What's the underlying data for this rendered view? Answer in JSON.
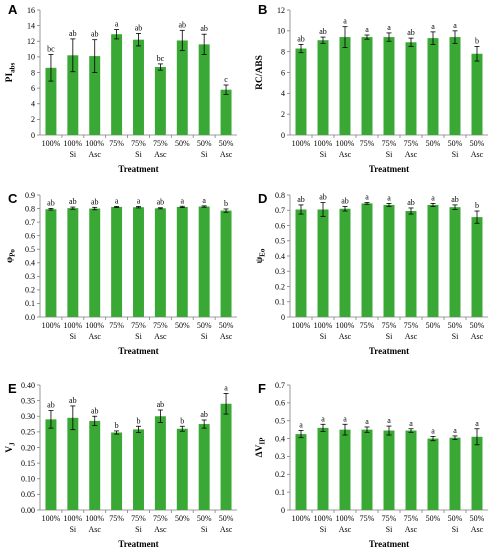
{
  "colors": {
    "bar": "#3aa835",
    "axis": "#7f7f7f",
    "error": "#000000"
  },
  "chart_data": [
    {
      "type": "bar",
      "panel": "A",
      "ylabel_main": "PI",
      "ylabel_sub": "abs",
      "xlabel": "Treatment",
      "ylim": [
        0,
        16
      ],
      "yticks": [
        "0",
        "2",
        "4",
        "6",
        "8",
        "10",
        "12",
        "14",
        "16"
      ],
      "category_lines": [
        [
          "100%",
          ""
        ],
        [
          "100%",
          "Si"
        ],
        [
          "100%",
          "Asc"
        ],
        [
          "75%",
          ""
        ],
        [
          "75%",
          "Si"
        ],
        [
          "75%",
          "Asc"
        ],
        [
          "50%",
          ""
        ],
        [
          "50%",
          "Si"
        ],
        [
          "50%",
          "Asc"
        ]
      ],
      "values": [
        8.6,
        10.2,
        10.1,
        12.9,
        12.2,
        8.7,
        12.1,
        11.6,
        5.8
      ],
      "errors": [
        1.7,
        2.1,
        2.1,
        0.6,
        0.8,
        0.4,
        1.3,
        1.3,
        0.6
      ],
      "letters": [
        "bc",
        "ab",
        "ab",
        "a",
        "ab",
        "bc",
        "ab",
        "ab",
        "c"
      ]
    },
    {
      "type": "bar",
      "panel": "B",
      "ylabel_main": "RC/ABS",
      "ylabel_sub": "",
      "xlabel": "Treatment",
      "ylim": [
        0,
        12
      ],
      "yticks": [
        "0",
        "2",
        "4",
        "6",
        "8",
        "10",
        "12"
      ],
      "category_lines": [
        [
          "100%",
          ""
        ],
        [
          "100%",
          "Si"
        ],
        [
          "100%",
          "Asc"
        ],
        [
          "75%",
          ""
        ],
        [
          "75%",
          "Si"
        ],
        [
          "75%",
          "Asc"
        ],
        [
          "50%",
          ""
        ],
        [
          "50%",
          "Si"
        ],
        [
          "50%",
          "Asc"
        ]
      ],
      "values": [
        8.3,
        9.1,
        9.4,
        9.4,
        9.4,
        8.9,
        9.3,
        9.4,
        7.8
      ],
      "errors": [
        0.4,
        0.3,
        1.0,
        0.2,
        0.4,
        0.4,
        0.6,
        0.6,
        0.7
      ],
      "letters": [
        "ab",
        "ab",
        "a",
        "a",
        "a",
        "ab",
        "a",
        "a",
        "b"
      ]
    },
    {
      "type": "bar",
      "panel": "C",
      "ylabel_main": "φ",
      "ylabel_sub": "Po",
      "xlabel": "Treatment",
      "ylim": [
        0,
        0.9
      ],
      "yticks": [
        "0.0",
        "0.1",
        "0.2",
        "0.3",
        "0.4",
        "0.5",
        "0.6",
        "0.7",
        "0.8",
        "0.9"
      ],
      "category_lines": [
        [
          "100%",
          ""
        ],
        [
          "100%",
          "Si"
        ],
        [
          "100%",
          "Asc"
        ],
        [
          "75%",
          ""
        ],
        [
          "75%",
          "Si"
        ],
        [
          "75%",
          "Asc"
        ],
        [
          "50%",
          ""
        ],
        [
          "50%",
          "Si"
        ],
        [
          "50%",
          "Asc"
        ]
      ],
      "values": [
        0.795,
        0.803,
        0.8,
        0.812,
        0.81,
        0.802,
        0.812,
        0.815,
        0.785
      ],
      "errors": [
        0.006,
        0.008,
        0.009,
        0.004,
        0.005,
        0.004,
        0.005,
        0.005,
        0.012
      ],
      "letters": [
        "ab",
        "ab",
        "ab",
        "a",
        "a",
        "ab",
        "a",
        "a",
        "b"
      ]
    },
    {
      "type": "bar",
      "panel": "D",
      "ylabel_main": "ψ",
      "ylabel_sub": "Eo",
      "xlabel": "Treatment",
      "ylim": [
        0,
        0.8
      ],
      "yticks": [
        "0",
        "0.1",
        "0.2",
        "0.3",
        "0.4",
        "0.5",
        "0.6",
        "0.7",
        "0.8"
      ],
      "category_lines": [
        [
          "100%",
          ""
        ],
        [
          "100%",
          "Si"
        ],
        [
          "100%",
          "Asc"
        ],
        [
          "75%",
          ""
        ],
        [
          "75%",
          "Si"
        ],
        [
          "75%",
          "Asc"
        ],
        [
          "50%",
          ""
        ],
        [
          "50%",
          "Si"
        ],
        [
          "50%",
          "Asc"
        ]
      ],
      "values": [
        0.705,
        0.705,
        0.71,
        0.745,
        0.735,
        0.695,
        0.735,
        0.72,
        0.655
      ],
      "errors": [
        0.03,
        0.045,
        0.015,
        0.006,
        0.01,
        0.02,
        0.01,
        0.015,
        0.04
      ],
      "letters": [
        "ab",
        "ab",
        "ab",
        "a",
        "a",
        "ab",
        "a",
        "ab",
        "b"
      ]
    },
    {
      "type": "bar",
      "panel": "E",
      "ylabel_main": "V",
      "ylabel_sub": "J",
      "xlabel": "Treatment",
      "ylim": [
        0,
        0.4
      ],
      "yticks": [
        "0.00",
        "0.05",
        "0.10",
        "0.15",
        "0.20",
        "0.25",
        "0.30",
        "0.35",
        "0.40"
      ],
      "category_lines": [
        [
          "100%",
          ""
        ],
        [
          "100%",
          "Si"
        ],
        [
          "100%",
          "Asc"
        ],
        [
          "75%",
          ""
        ],
        [
          "75%",
          "Si"
        ],
        [
          "75%",
          "Asc"
        ],
        [
          "50%",
          ""
        ],
        [
          "50%",
          "Si"
        ],
        [
          "50%",
          "Asc"
        ]
      ],
      "values": [
        0.29,
        0.295,
        0.285,
        0.248,
        0.258,
        0.3,
        0.26,
        0.275,
        0.34
      ],
      "errors": [
        0.028,
        0.038,
        0.015,
        0.005,
        0.01,
        0.02,
        0.008,
        0.013,
        0.033
      ],
      "letters": [
        "ab",
        "ab",
        "ab",
        "b",
        "b",
        "ab",
        "b",
        "ab",
        "a"
      ]
    },
    {
      "type": "bar",
      "panel": "F",
      "ylabel_main": "ΔV",
      "ylabel_sub": "IP",
      "xlabel": "Treatment",
      "ylim": [
        0,
        0.7
      ],
      "yticks": [
        "0",
        "0.1",
        "0.2",
        "0.3",
        "0.4",
        "0.5",
        "0.6",
        "0.7"
      ],
      "category_lines": [
        [
          "100%",
          ""
        ],
        [
          "100%",
          "Si"
        ],
        [
          "100%",
          "Asc"
        ],
        [
          "75%",
          ""
        ],
        [
          "75%",
          "Si"
        ],
        [
          "75%",
          "Asc"
        ],
        [
          "50%",
          ""
        ],
        [
          "50%",
          "Si"
        ],
        [
          "50%",
          "Asc"
        ]
      ],
      "values": [
        0.425,
        0.46,
        0.45,
        0.45,
        0.445,
        0.445,
        0.4,
        0.405,
        0.41
      ],
      "errors": [
        0.02,
        0.02,
        0.03,
        0.015,
        0.025,
        0.01,
        0.012,
        0.01,
        0.045
      ],
      "letters": [
        "a",
        "a",
        "a",
        "a",
        "a",
        "a",
        "a",
        "a",
        "a"
      ]
    }
  ]
}
